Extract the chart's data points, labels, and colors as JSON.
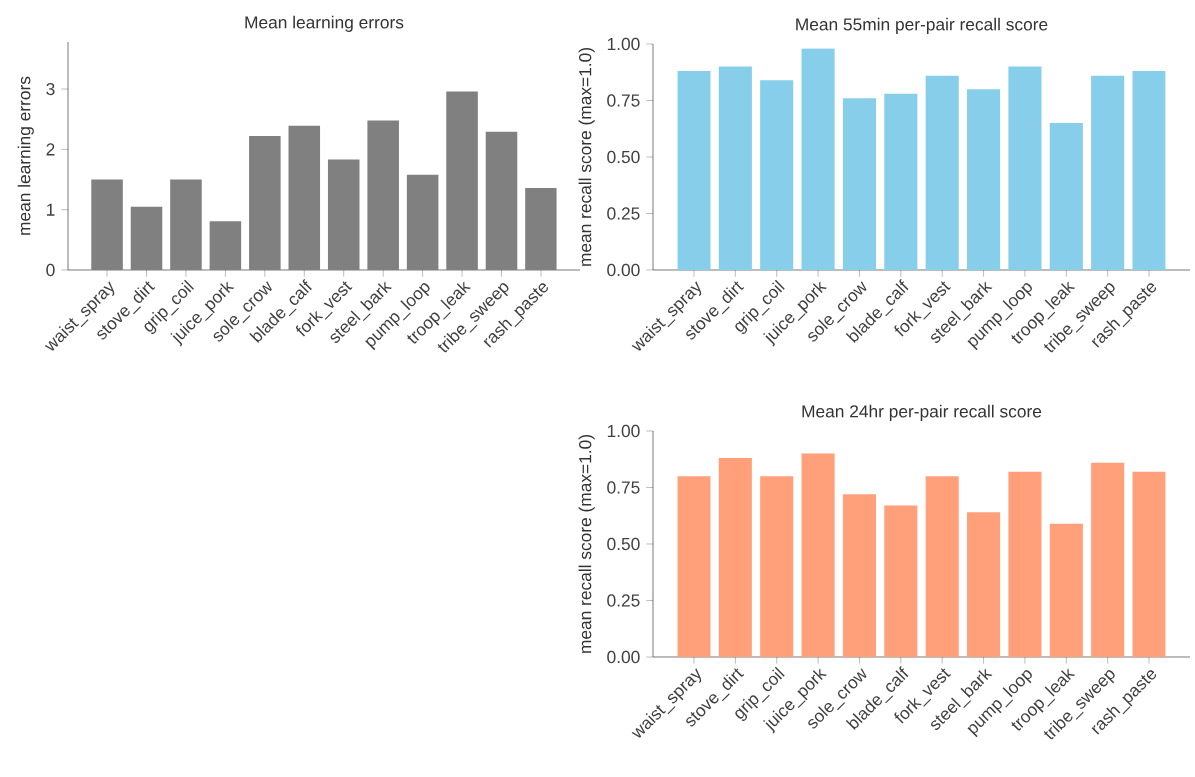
{
  "chart_data": [
    {
      "type": "bar",
      "title": "Mean learning errors",
      "ylabel": "mean learning errors",
      "color": "#808080",
      "categories": [
        "waist_spray",
        "stove_dirt",
        "grip_coil",
        "juice_pork",
        "sole_crow",
        "blade_calf",
        "fork_vest",
        "steel_bark",
        "pump_loop",
        "troop_leak",
        "tribe_sweep",
        "rash_paste"
      ],
      "values": [
        1.5,
        1.05,
        1.5,
        0.81,
        2.22,
        2.39,
        1.83,
        2.48,
        1.58,
        2.96,
        2.29,
        1.36
      ],
      "ylim": [
        0,
        3.78
      ],
      "yticks": [
        0,
        1,
        2,
        3
      ]
    },
    {
      "type": "bar",
      "title": "Mean 55min per-pair recall score",
      "ylabel": "mean recall score (max=1.0)",
      "color": "#87ceeb",
      "categories": [
        "waist_spray",
        "stove_dirt",
        "grip_coil",
        "juice_pork",
        "sole_crow",
        "blade_calf",
        "fork_vest",
        "steel_bark",
        "pump_loop",
        "troop_leak",
        "tribe_sweep",
        "rash_paste"
      ],
      "values": [
        0.88,
        0.9,
        0.84,
        0.98,
        0.76,
        0.78,
        0.86,
        0.8,
        0.9,
        0.65,
        0.86,
        0.88
      ],
      "ylim": [
        0,
        1
      ],
      "yticks": [
        {
          "value": 0,
          "label": "0.00"
        },
        {
          "value": 0.25,
          "label": "0.25"
        },
        {
          "value": 0.5,
          "label": "0.50"
        },
        {
          "value": 0.75,
          "label": "0.75"
        },
        {
          "value": 1,
          "label": "1.00"
        }
      ]
    },
    {
      "type": "bar",
      "title": "Mean 24hr per-pair recall score",
      "ylabel": "mean recall score (max=1.0)",
      "color": "#ffa07a",
      "categories": [
        "waist_spray",
        "stove_dirt",
        "grip_coil",
        "juice_pork",
        "sole_crow",
        "blade_calf",
        "fork_vest",
        "steel_bark",
        "pump_loop",
        "troop_leak",
        "tribe_sweep",
        "rash_paste"
      ],
      "values": [
        0.8,
        0.88,
        0.8,
        0.9,
        0.72,
        0.67,
        0.8,
        0.64,
        0.82,
        0.59,
        0.86,
        0.82
      ],
      "ylim": [
        0,
        1
      ],
      "yticks": [
        {
          "value": 0,
          "label": "0.00"
        },
        {
          "value": 0.25,
          "label": "0.25"
        },
        {
          "value": 0.5,
          "label": "0.50"
        },
        {
          "value": 0.75,
          "label": "0.75"
        },
        {
          "value": 1,
          "label": "1.00"
        }
      ]
    }
  ]
}
